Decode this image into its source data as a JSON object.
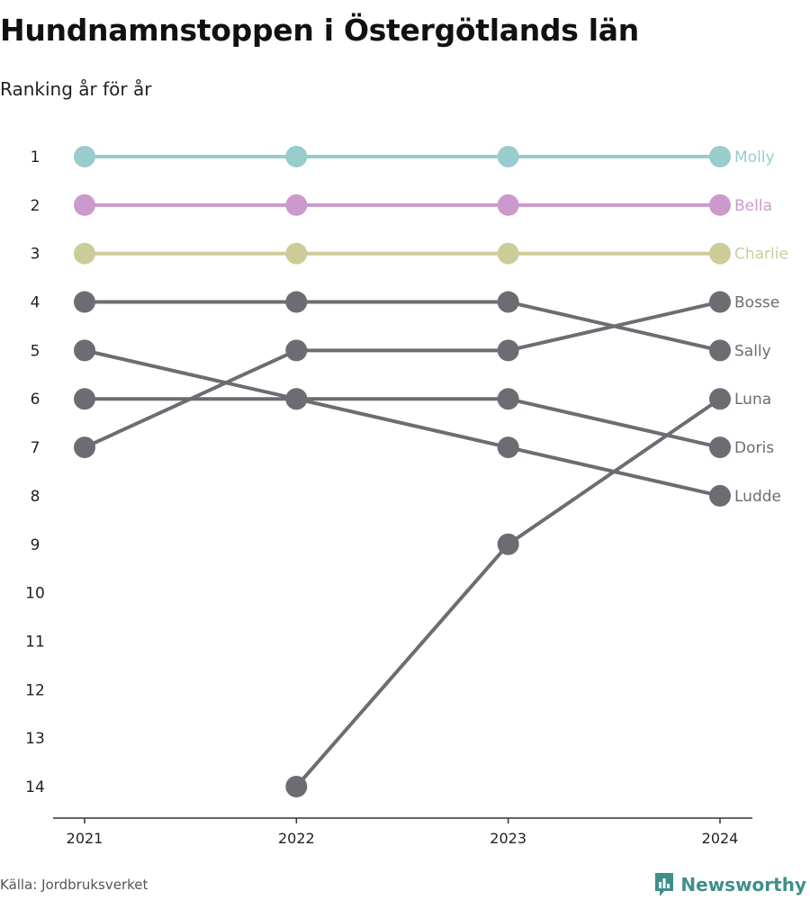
{
  "header": {
    "title": "Hundnamnstoppen i Östergötlands län",
    "subtitle": "Ranking år för år"
  },
  "footer": {
    "source": "Källa: Jordbruksverket",
    "brand": "Newsworthy",
    "brand_icon": "bar-chart-logo-icon",
    "brand_color": "#3e8f8a"
  },
  "chart_data": {
    "type": "line",
    "x": [
      "2021",
      "2022",
      "2023",
      "2024"
    ],
    "ylim": [
      1,
      14
    ],
    "y_inverted": true,
    "y_ticks": [
      1,
      2,
      3,
      4,
      5,
      6,
      7,
      8,
      9,
      10,
      11,
      12,
      13,
      14
    ],
    "grid": false,
    "series": [
      {
        "name": "Molly",
        "values": [
          1,
          1,
          1,
          1
        ],
        "color": "#99cccc"
      },
      {
        "name": "Bella",
        "values": [
          2,
          2,
          2,
          2
        ],
        "color": "#cc99cc"
      },
      {
        "name": "Charlie",
        "values": [
          3,
          3,
          3,
          3
        ],
        "color": "#cccc99"
      },
      {
        "name": "Bosse",
        "values": [
          7,
          5,
          5,
          4
        ],
        "color": "#6d6c72"
      },
      {
        "name": "Sally",
        "values": [
          4,
          4,
          4,
          5
        ],
        "color": "#6d6c72"
      },
      {
        "name": "Luna",
        "values": [
          null,
          14,
          9,
          6
        ],
        "color": "#6d6c72"
      },
      {
        "name": "Doris",
        "values": [
          6,
          6,
          6,
          7
        ],
        "color": "#6d6c72"
      },
      {
        "name": "Ludde",
        "values": [
          5,
          6,
          7,
          8
        ],
        "color": "#6d6c72"
      }
    ]
  }
}
